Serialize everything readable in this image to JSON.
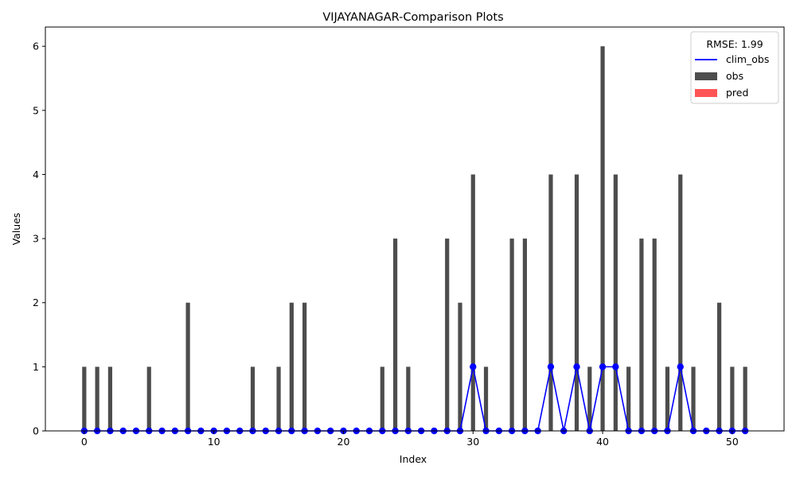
{
  "chart_data": {
    "type": "bar",
    "title": "VIJAYANAGAR-Comparison Plots",
    "xlabel": "Index",
    "ylabel": "Values",
    "xlim": [
      -3,
      54
    ],
    "ylim": [
      0,
      6.3
    ],
    "xticks": [
      0,
      10,
      20,
      30,
      40,
      50
    ],
    "yticks": [
      0,
      1,
      2,
      3,
      4,
      5,
      6
    ],
    "legend": {
      "title": "RMSE: 1.99",
      "position": "top-right",
      "entries": [
        {
          "label": "clim_obs",
          "kind": "line",
          "color": "#0000ff"
        },
        {
          "label": "obs",
          "kind": "bar",
          "color": "#4d4d4d"
        },
        {
          "label": "pred",
          "kind": "bar",
          "color": "#ff5555"
        }
      ]
    },
    "series": [
      {
        "name": "obs",
        "kind": "bar",
        "color": "#4d4d4d",
        "x": [
          0,
          1,
          2,
          3,
          4,
          5,
          6,
          7,
          8,
          9,
          10,
          11,
          12,
          13,
          14,
          15,
          16,
          17,
          18,
          19,
          20,
          21,
          22,
          23,
          24,
          25,
          26,
          27,
          28,
          29,
          30,
          31,
          32,
          33,
          34,
          35,
          36,
          37,
          38,
          39,
          40,
          41,
          42,
          43,
          44,
          45,
          46,
          47,
          48,
          49,
          50,
          51
        ],
        "values": [
          1,
          1,
          1,
          0,
          0,
          1,
          0,
          0,
          2,
          0,
          0,
          0,
          0,
          1,
          0,
          1,
          2,
          2,
          0,
          0,
          0,
          0,
          0,
          1,
          3,
          1,
          0,
          0,
          3,
          2,
          4,
          1,
          0,
          3,
          3,
          0,
          4,
          0,
          4,
          1,
          6,
          4,
          1,
          3,
          3,
          1,
          4,
          1,
          0,
          2,
          1,
          1
        ]
      },
      {
        "name": "pred",
        "kind": "bar",
        "color": "#ff5555",
        "x": [
          0,
          1,
          2,
          3,
          4,
          5,
          6,
          7,
          8,
          9,
          10,
          11,
          12,
          13,
          14,
          15,
          16,
          17,
          18,
          19,
          20,
          21,
          22,
          23,
          24,
          25,
          26,
          27,
          28,
          29,
          30,
          31,
          32,
          33,
          34,
          35,
          36,
          37,
          38,
          39,
          40,
          41,
          42,
          43,
          44,
          45,
          46,
          47,
          48,
          49,
          50,
          51
        ],
        "values": [
          0,
          0,
          0,
          0,
          0,
          0,
          0,
          0,
          0,
          0,
          0,
          0,
          0,
          0,
          0,
          0,
          0,
          0,
          0,
          0,
          0,
          0,
          0,
          0,
          0,
          0,
          0,
          0,
          0,
          0,
          0,
          0,
          0,
          0,
          0,
          0,
          0,
          0,
          0,
          0,
          0,
          0,
          0,
          0,
          0,
          0,
          0,
          0,
          0,
          0,
          0,
          0
        ]
      },
      {
        "name": "clim_obs",
        "kind": "line",
        "color": "#0000ff",
        "x": [
          0,
          1,
          2,
          3,
          4,
          5,
          6,
          7,
          8,
          9,
          10,
          11,
          12,
          13,
          14,
          15,
          16,
          17,
          18,
          19,
          20,
          21,
          22,
          23,
          24,
          25,
          26,
          27,
          28,
          29,
          30,
          31,
          32,
          33,
          34,
          35,
          36,
          37,
          38,
          39,
          40,
          41,
          42,
          43,
          44,
          45,
          46,
          47,
          48,
          49,
          50,
          51
        ],
        "values": [
          0,
          0,
          0,
          0,
          0,
          0,
          0,
          0,
          0,
          0,
          0,
          0,
          0,
          0,
          0,
          0,
          0,
          0,
          0,
          0,
          0,
          0,
          0,
          0,
          0,
          0,
          0,
          0,
          0,
          0,
          1,
          0,
          0,
          0,
          0,
          0,
          1,
          0,
          1,
          0,
          1,
          1,
          0,
          0,
          0,
          0,
          1,
          0,
          0,
          0,
          0,
          0
        ]
      }
    ]
  }
}
